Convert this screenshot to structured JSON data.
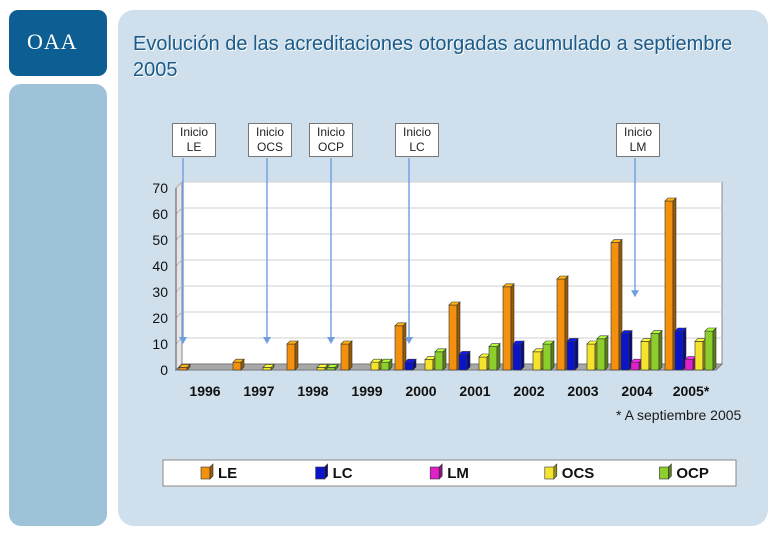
{
  "logo": {
    "text": "OAA"
  },
  "title": "Evolución de las acreditaciones otorgadas acumulado a septiembre 2005",
  "footnote": "* A septiembre 2005",
  "annotations": [
    {
      "label": "Inicio LE",
      "line1": "Inicio",
      "line2": "LE",
      "category": "1996",
      "series": "LE",
      "points_to_value": 10
    },
    {
      "label": "Inicio OCS",
      "line1": "Inicio",
      "line2": "OCS",
      "category": "1997",
      "series": "OCS",
      "points_to_value": 10
    },
    {
      "label": "Inicio OCP",
      "line1": "Inicio",
      "line2": "OCP",
      "category": "1998",
      "series": "OCP",
      "points_to_value": 10
    },
    {
      "label": "Inicio LC",
      "line1": "Inicio",
      "line2": "LC",
      "category": "2000",
      "series": "LC",
      "points_to_value": 10
    },
    {
      "label": "Inicio LM",
      "line1": "Inicio",
      "line2": "LM",
      "category": "2004",
      "series": "LM",
      "points_to_value": 28
    }
  ],
  "colors": {
    "LE": "#f3910f",
    "LC": "#0a14c8",
    "LM": "#e020c8",
    "OCS": "#f4e42c",
    "OCP": "#8ccf2c",
    "arrow": "#6f9fe0"
  },
  "chart_data": {
    "type": "bar",
    "title": "Evolución de las acreditaciones otorgadas acumulado a septiembre 2005",
    "categories": [
      "1996",
      "1997",
      "1998",
      "1999",
      "2000",
      "2001",
      "2002",
      "2003",
      "2004",
      "2005*"
    ],
    "series": [
      {
        "name": "LE",
        "values": [
          1,
          3,
          10,
          10,
          17,
          25,
          32,
          35,
          49,
          65
        ]
      },
      {
        "name": "LC",
        "values": [
          0,
          0,
          0,
          0,
          3,
          6,
          10,
          11,
          14,
          15
        ]
      },
      {
        "name": "LM",
        "values": [
          0,
          0,
          0,
          0,
          0,
          0,
          0,
          0,
          3,
          4
        ]
      },
      {
        "name": "OCS",
        "values": [
          0,
          1,
          1,
          3,
          4,
          5,
          7,
          10,
          11,
          11
        ]
      },
      {
        "name": "OCP",
        "values": [
          0,
          0,
          1,
          3,
          7,
          9,
          10,
          12,
          14,
          15
        ]
      }
    ],
    "yticks": [
      0,
      10,
      20,
      30,
      40,
      50,
      60,
      70
    ],
    "ylim": [
      0,
      70
    ],
    "xlabel": "",
    "ylabel": "",
    "legend": [
      "LE",
      "LC",
      "LM",
      "OCS",
      "OCP"
    ],
    "legend_position": "bottom",
    "grid": true
  }
}
